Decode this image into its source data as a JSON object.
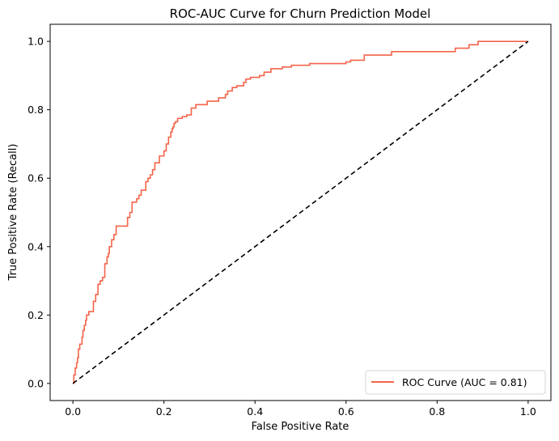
{
  "chart_data": {
    "type": "line",
    "title": "ROC-AUC Curve for Churn Prediction Model",
    "xlabel": "False Positive Rate",
    "ylabel": "True Positive Rate (Recall)",
    "xlim": [
      -0.05,
      1.05
    ],
    "ylim": [
      -0.05,
      1.05
    ],
    "xticks": [
      0.0,
      0.2,
      0.4,
      0.6,
      0.8,
      1.0
    ],
    "yticks": [
      0.0,
      0.2,
      0.4,
      0.6,
      0.8,
      1.0
    ],
    "xtick_labels": [
      "0.0",
      "0.2",
      "0.4",
      "0.6",
      "0.8",
      "1.0"
    ],
    "ytick_labels": [
      "0.0",
      "0.2",
      "0.4",
      "0.6",
      "0.8",
      "1.0"
    ],
    "grid": false,
    "legend_position": "lower-right",
    "series": [
      {
        "name": "ROC Curve (AUC = 0.81)",
        "color": "#f4644a",
        "style": "step",
        "x": [
          0.0,
          0.002,
          0.002,
          0.005,
          0.005,
          0.008,
          0.008,
          0.01,
          0.01,
          0.012,
          0.012,
          0.015,
          0.015,
          0.02,
          0.02,
          0.022,
          0.022,
          0.025,
          0.025,
          0.028,
          0.028,
          0.03,
          0.03,
          0.035,
          0.035,
          0.045,
          0.045,
          0.05,
          0.05,
          0.055,
          0.055,
          0.06,
          0.06,
          0.065,
          0.065,
          0.07,
          0.07,
          0.075,
          0.075,
          0.078,
          0.078,
          0.08,
          0.08,
          0.085,
          0.085,
          0.09,
          0.09,
          0.095,
          0.095,
          0.12,
          0.12,
          0.125,
          0.125,
          0.13,
          0.13,
          0.14,
          0.14,
          0.145,
          0.145,
          0.15,
          0.15,
          0.16,
          0.16,
          0.165,
          0.165,
          0.17,
          0.17,
          0.175,
          0.175,
          0.18,
          0.18,
          0.19,
          0.19,
          0.2,
          0.2,
          0.205,
          0.205,
          0.21,
          0.21,
          0.215,
          0.215,
          0.218,
          0.218,
          0.22,
          0.22,
          0.222,
          0.222,
          0.225,
          0.225,
          0.23,
          0.23,
          0.24,
          0.24,
          0.25,
          0.25,
          0.26,
          0.26,
          0.27,
          0.27,
          0.295,
          0.295,
          0.32,
          0.32,
          0.335,
          0.335,
          0.34,
          0.34,
          0.35,
          0.35,
          0.36,
          0.36,
          0.375,
          0.375,
          0.38,
          0.38,
          0.39,
          0.39,
          0.41,
          0.41,
          0.42,
          0.42,
          0.435,
          0.435,
          0.46,
          0.46,
          0.48,
          0.48,
          0.52,
          0.52,
          0.6,
          0.6,
          0.61,
          0.61,
          0.64,
          0.64,
          0.7,
          0.7,
          0.84,
          0.84,
          0.87,
          0.87,
          0.89,
          0.89,
          1.0
        ],
        "y": [
          0.0,
          0.0,
          0.025,
          0.025,
          0.045,
          0.045,
          0.06,
          0.06,
          0.075,
          0.075,
          0.1,
          0.1,
          0.115,
          0.115,
          0.135,
          0.135,
          0.155,
          0.155,
          0.17,
          0.17,
          0.185,
          0.185,
          0.2,
          0.2,
          0.21,
          0.21,
          0.24,
          0.24,
          0.26,
          0.26,
          0.29,
          0.29,
          0.3,
          0.3,
          0.31,
          0.31,
          0.35,
          0.35,
          0.37,
          0.37,
          0.38,
          0.38,
          0.4,
          0.4,
          0.42,
          0.42,
          0.435,
          0.435,
          0.46,
          0.46,
          0.485,
          0.485,
          0.5,
          0.5,
          0.53,
          0.53,
          0.54,
          0.54,
          0.55,
          0.55,
          0.565,
          0.565,
          0.59,
          0.59,
          0.6,
          0.6,
          0.61,
          0.61,
          0.625,
          0.625,
          0.645,
          0.645,
          0.665,
          0.665,
          0.68,
          0.68,
          0.7,
          0.7,
          0.72,
          0.72,
          0.735,
          0.735,
          0.745,
          0.745,
          0.75,
          0.75,
          0.76,
          0.76,
          0.765,
          0.765,
          0.775,
          0.775,
          0.78,
          0.78,
          0.785,
          0.785,
          0.805,
          0.805,
          0.815,
          0.815,
          0.825,
          0.825,
          0.835,
          0.835,
          0.845,
          0.845,
          0.855,
          0.855,
          0.865,
          0.865,
          0.87,
          0.87,
          0.88,
          0.88,
          0.89,
          0.89,
          0.895,
          0.895,
          0.9,
          0.9,
          0.91,
          0.91,
          0.92,
          0.92,
          0.925,
          0.925,
          0.93,
          0.93,
          0.935,
          0.935,
          0.94,
          0.94,
          0.945,
          0.945,
          0.96,
          0.96,
          0.97,
          0.97,
          0.98,
          0.98,
          0.99,
          0.99,
          1.0,
          1.0
        ]
      },
      {
        "color": "#000000",
        "style": "dashed",
        "x": [
          0.0,
          1.0
        ],
        "y": [
          0.0,
          1.0
        ]
      }
    ]
  }
}
